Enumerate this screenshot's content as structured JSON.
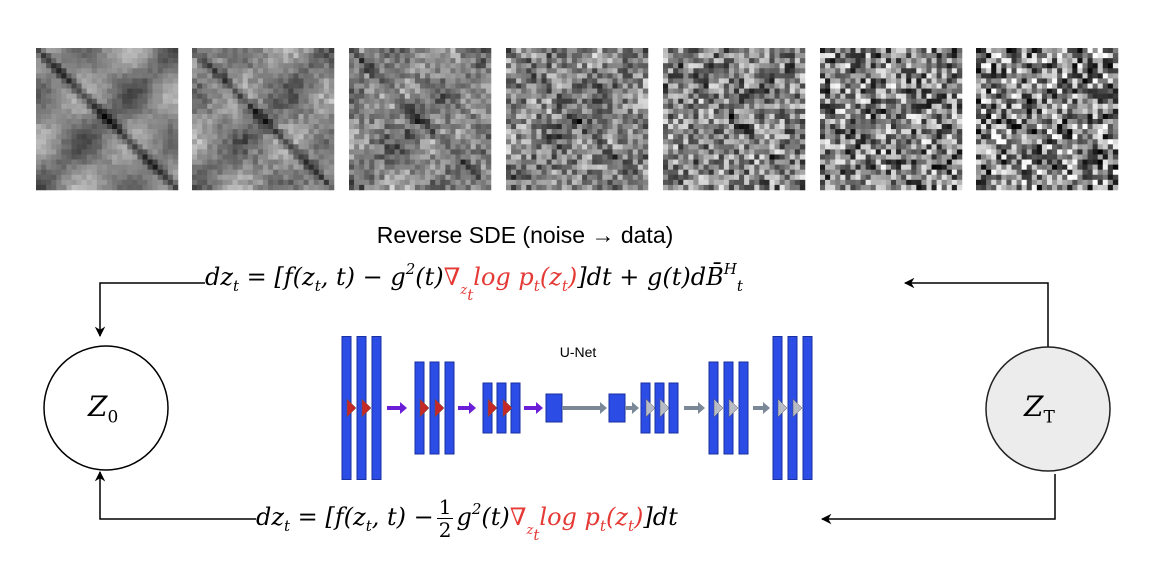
{
  "title": "Reverse SDE (noise → data)",
  "unet_label": "U-Net",
  "nodes": {
    "start": {
      "letter": "Z",
      "sub": "0"
    },
    "end": {
      "letter": "Z",
      "sub": "T"
    }
  },
  "equation_top": {
    "lhs": "dz",
    "bracket_open": "[f(z",
    "t_comma": ", t) − g",
    "sq": "2",
    "of_t": "(t)",
    "nabla": "∇",
    "log_p": "log p",
    "of_z": "(z",
    "close_paren": ")",
    "tail": "]dt + g(t)d",
    "B": "B̄",
    "B_sup": "H",
    "sub_t": "t"
  },
  "equation_bottom": {
    "lhs": "dz",
    "bracket_open": "[f(z",
    "t_comma": ", t) −",
    "frac_num": "1",
    "frac_den": "2",
    "g": "g",
    "sq": "2",
    "of_t": "(t)",
    "nabla": "∇",
    "log_p": "log p",
    "of_z": "(z",
    "close_paren": ")",
    "tail": "]dt",
    "sub_t": "t"
  },
  "colors": {
    "unet_block": "#2b4de6",
    "unet_block_border": "#1a2fa0",
    "skip_triangle": "#c62828",
    "up_triangle": "#b8bcc6",
    "down_arrow": "#6a1ed8",
    "bridge_arrow": "#7a8898",
    "score_red": "#e53935",
    "node_end_fill": "#ececec"
  },
  "noise_panels": [
    {
      "noise": 0.06
    },
    {
      "noise": 0.18
    },
    {
      "noise": 0.32
    },
    {
      "noise": 0.5
    },
    {
      "noise": 0.66
    },
    {
      "noise": 0.82
    },
    {
      "noise": 0.94
    }
  ]
}
